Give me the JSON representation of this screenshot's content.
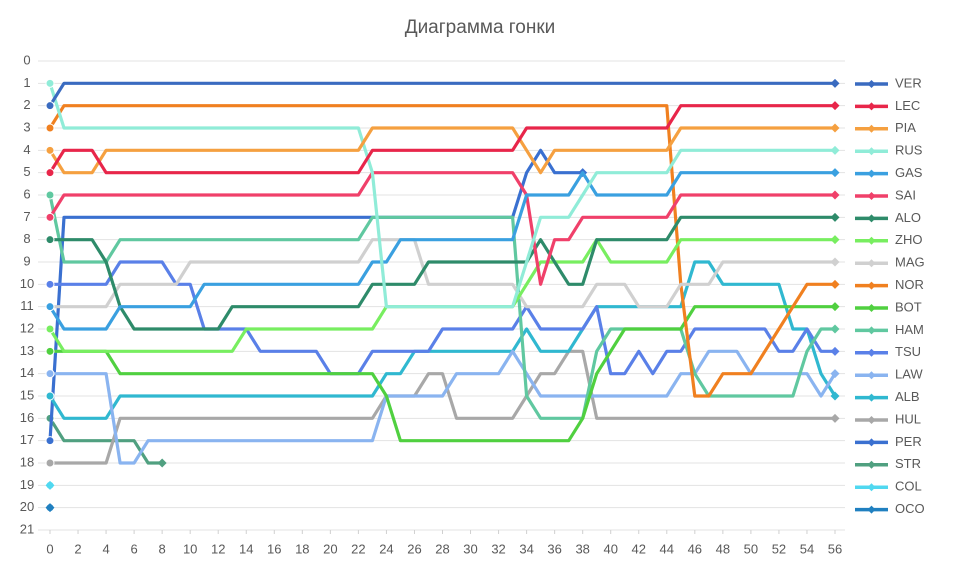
{
  "chart_data": {
    "type": "line",
    "title": "Диаграмма гонки",
    "x": [
      0,
      1,
      2,
      3,
      4,
      5,
      6,
      7,
      8,
      9,
      10,
      11,
      12,
      13,
      14,
      15,
      16,
      17,
      18,
      19,
      20,
      21,
      22,
      23,
      24,
      25,
      26,
      27,
      28,
      29,
      30,
      31,
      32,
      33,
      34,
      35,
      36,
      37,
      38,
      39,
      40,
      41,
      42,
      43,
      44,
      45,
      46,
      47,
      48,
      49,
      50,
      51,
      52,
      53,
      54,
      55,
      56
    ],
    "xlim": [
      0,
      56
    ],
    "xticks": [
      0,
      2,
      4,
      6,
      8,
      10,
      12,
      14,
      16,
      18,
      20,
      22,
      24,
      26,
      28,
      30,
      32,
      34,
      36,
      38,
      40,
      42,
      44,
      46,
      48,
      50,
      52,
      54,
      56
    ],
    "ylim": [
      0,
      21
    ],
    "yticks": [
      0,
      1,
      2,
      3,
      4,
      5,
      6,
      7,
      8,
      9,
      10,
      11,
      12,
      13,
      14,
      15,
      16,
      17,
      18,
      19,
      20,
      21
    ],
    "y_inverted": true,
    "grid": true,
    "legend": "right",
    "series": [
      {
        "name": "VER",
        "color": "#3a6bc0",
        "values": [
          2,
          1,
          1,
          1,
          1,
          1,
          1,
          1,
          1,
          1,
          1,
          1,
          1,
          1,
          1,
          1,
          1,
          1,
          1,
          1,
          1,
          1,
          1,
          1,
          1,
          1,
          1,
          1,
          1,
          1,
          1,
          1,
          1,
          1,
          1,
          1,
          1,
          1,
          1,
          1,
          1,
          1,
          1,
          1,
          1,
          1,
          1,
          1,
          1,
          1,
          1,
          1,
          1,
          1,
          1,
          1,
          1
        ]
      },
      {
        "name": "LEC",
        "color": "#e8264a",
        "values": [
          5,
          4,
          4,
          4,
          5,
          5,
          5,
          5,
          5,
          5,
          5,
          5,
          5,
          5,
          5,
          5,
          5,
          5,
          5,
          5,
          5,
          5,
          5,
          4,
          4,
          4,
          4,
          4,
          4,
          4,
          4,
          4,
          4,
          4,
          3,
          3,
          3,
          3,
          3,
          3,
          3,
          3,
          3,
          3,
          3,
          2,
          2,
          2,
          2,
          2,
          2,
          2,
          2,
          2,
          2,
          2,
          2
        ]
      },
      {
        "name": "PIA",
        "color": "#f5a040",
        "values": [
          4,
          5,
          5,
          5,
          4,
          4,
          4,
          4,
          4,
          4,
          4,
          4,
          4,
          4,
          4,
          4,
          4,
          4,
          4,
          4,
          4,
          4,
          4,
          3,
          3,
          3,
          3,
          3,
          3,
          3,
          3,
          3,
          3,
          3,
          4,
          5,
          4,
          4,
          4,
          4,
          4,
          4,
          4,
          4,
          4,
          3,
          3,
          3,
          3,
          3,
          3,
          3,
          3,
          3,
          3,
          3,
          3
        ]
      },
      {
        "name": "RUS",
        "color": "#90ecd8",
        "values": [
          1,
          3,
          3,
          3,
          3,
          3,
          3,
          3,
          3,
          3,
          3,
          3,
          3,
          3,
          3,
          3,
          3,
          3,
          3,
          3,
          3,
          3,
          3,
          5,
          11,
          11,
          11,
          11,
          11,
          11,
          11,
          11,
          11,
          11,
          9,
          7,
          7,
          7,
          6,
          5,
          5,
          5,
          5,
          5,
          5,
          4,
          4,
          4,
          4,
          4,
          4,
          4,
          4,
          4,
          4,
          4,
          4
        ]
      },
      {
        "name": "GAS",
        "color": "#3aa0e0",
        "values": [
          11,
          12,
          12,
          12,
          12,
          11,
          11,
          11,
          11,
          11,
          11,
          10,
          10,
          10,
          10,
          10,
          10,
          10,
          10,
          10,
          10,
          10,
          10,
          9,
          9,
          8,
          8,
          8,
          8,
          8,
          8,
          8,
          8,
          8,
          6,
          6,
          6,
          6,
          5,
          6,
          6,
          6,
          6,
          6,
          6,
          5,
          5,
          5,
          5,
          5,
          5,
          5,
          5,
          5,
          5,
          5,
          5
        ]
      },
      {
        "name": "SAI",
        "color": "#f0406a",
        "values": [
          7,
          6,
          6,
          6,
          6,
          6,
          6,
          6,
          6,
          6,
          6,
          6,
          6,
          6,
          6,
          6,
          6,
          6,
          6,
          6,
          6,
          6,
          6,
          5,
          5,
          5,
          5,
          5,
          5,
          5,
          5,
          5,
          5,
          5,
          6,
          10,
          8,
          8,
          7,
          7,
          7,
          7,
          7,
          7,
          7,
          6,
          6,
          6,
          6,
          6,
          6,
          6,
          6,
          6,
          6,
          6,
          6
        ]
      },
      {
        "name": "ALO",
        "color": "#2e8b6a",
        "values": [
          8,
          8,
          8,
          8,
          9,
          11,
          12,
          12,
          12,
          12,
          12,
          12,
          12,
          11,
          11,
          11,
          11,
          11,
          11,
          11,
          11,
          11,
          11,
          10,
          10,
          10,
          10,
          9,
          9,
          9,
          9,
          9,
          9,
          9,
          9,
          8,
          9,
          10,
          10,
          8,
          8,
          8,
          8,
          8,
          8,
          7,
          7,
          7,
          7,
          7,
          7,
          7,
          7,
          7,
          7,
          7,
          7
        ]
      },
      {
        "name": "ZHO",
        "color": "#78ee60",
        "values": [
          12,
          13,
          13,
          13,
          13,
          13,
          13,
          13,
          13,
          13,
          13,
          13,
          13,
          13,
          12,
          12,
          12,
          12,
          12,
          12,
          12,
          12,
          12,
          12,
          11,
          11,
          11,
          11,
          11,
          11,
          11,
          11,
          11,
          11,
          10,
          9,
          9,
          9,
          9,
          8,
          9,
          9,
          9,
          9,
          9,
          8,
          8,
          8,
          8,
          8,
          8,
          8,
          8,
          8,
          8,
          8,
          8
        ]
      },
      {
        "name": "MAG",
        "color": "#d0d0d0",
        "values": [
          11,
          11,
          11,
          11,
          11,
          10,
          10,
          10,
          10,
          10,
          9,
          9,
          9,
          9,
          9,
          9,
          9,
          9,
          9,
          9,
          9,
          9,
          9,
          8,
          8,
          8,
          8,
          10,
          10,
          10,
          10,
          10,
          10,
          10,
          11,
          11,
          11,
          11,
          11,
          10,
          10,
          10,
          11,
          11,
          11,
          10,
          10,
          10,
          9,
          9,
          9,
          9,
          9,
          9,
          9,
          9,
          9
        ]
      },
      {
        "name": "NOR",
        "color": "#f08020",
        "values": [
          3,
          2,
          2,
          2,
          2,
          2,
          2,
          2,
          2,
          2,
          2,
          2,
          2,
          2,
          2,
          2,
          2,
          2,
          2,
          2,
          2,
          2,
          2,
          2,
          2,
          2,
          2,
          2,
          2,
          2,
          2,
          2,
          2,
          2,
          2,
          2,
          2,
          2,
          2,
          2,
          2,
          2,
          2,
          2,
          2,
          10,
          15,
          15,
          14,
          14,
          14,
          13,
          12,
          11,
          10,
          10,
          10
        ]
      },
      {
        "name": "BOT",
        "color": "#50d040",
        "values": [
          13,
          13,
          13,
          13,
          13,
          14,
          14,
          14,
          14,
          14,
          14,
          14,
          14,
          14,
          14,
          14,
          14,
          14,
          14,
          14,
          14,
          14,
          14,
          14,
          15,
          17,
          17,
          17,
          17,
          17,
          17,
          17,
          17,
          17,
          17,
          17,
          17,
          17,
          16,
          14,
          13,
          12,
          12,
          12,
          12,
          12,
          11,
          11,
          11,
          11,
          11,
          11,
          11,
          11,
          11,
          11,
          11
        ]
      },
      {
        "name": "HAM",
        "color": "#60c8a0",
        "values": [
          6,
          9,
          9,
          9,
          9,
          8,
          8,
          8,
          8,
          8,
          8,
          8,
          8,
          8,
          8,
          8,
          8,
          8,
          8,
          8,
          8,
          8,
          8,
          7,
          7,
          7,
          7,
          7,
          7,
          7,
          7,
          7,
          7,
          7,
          15,
          16,
          16,
          16,
          16,
          13,
          12,
          12,
          12,
          12,
          12,
          12,
          14,
          15,
          15,
          15,
          15,
          15,
          15,
          15,
          13,
          12,
          12
        ]
      },
      {
        "name": "TSU",
        "color": "#5a80e8",
        "values": [
          10,
          10,
          10,
          10,
          10,
          9,
          9,
          9,
          9,
          10,
          10,
          12,
          12,
          12,
          12,
          13,
          13,
          13,
          13,
          13,
          14,
          14,
          14,
          13,
          13,
          13,
          13,
          13,
          12,
          12,
          12,
          12,
          12,
          12,
          11,
          12,
          12,
          12,
          12,
          11,
          14,
          14,
          13,
          14,
          13,
          13,
          12,
          12,
          12,
          12,
          12,
          12,
          13,
          13,
          12,
          13,
          13
        ]
      },
      {
        "name": "LAW",
        "color": "#8ab4f0",
        "values": [
          14,
          14,
          14,
          14,
          14,
          18,
          18,
          17,
          17,
          17,
          17,
          17,
          17,
          17,
          17,
          17,
          17,
          17,
          17,
          17,
          17,
          17,
          17,
          17,
          15,
          15,
          15,
          15,
          15,
          14,
          14,
          14,
          14,
          13,
          14,
          15,
          15,
          15,
          15,
          15,
          15,
          15,
          15,
          15,
          15,
          14,
          14,
          13,
          13,
          13,
          14,
          14,
          14,
          14,
          14,
          15,
          14
        ]
      },
      {
        "name": "ALB",
        "color": "#30b8d0",
        "values": [
          15,
          16,
          16,
          16,
          16,
          15,
          15,
          15,
          15,
          15,
          15,
          15,
          15,
          15,
          15,
          15,
          15,
          15,
          15,
          15,
          15,
          15,
          15,
          15,
          14,
          14,
          13,
          13,
          13,
          13,
          13,
          13,
          13,
          13,
          12,
          13,
          13,
          13,
          12,
          11,
          11,
          11,
          11,
          11,
          11,
          11,
          9,
          9,
          10,
          10,
          10,
          10,
          10,
          12,
          12,
          14,
          15
        ]
      },
      {
        "name": "HUL",
        "color": "#a8a8a8",
        "values": [
          18,
          18,
          18,
          18,
          18,
          16,
          16,
          16,
          16,
          16,
          16,
          16,
          16,
          16,
          16,
          16,
          16,
          16,
          16,
          16,
          16,
          16,
          16,
          16,
          15,
          15,
          15,
          14,
          14,
          16,
          16,
          16,
          16,
          16,
          15,
          14,
          14,
          13,
          13,
          16,
          16,
          16,
          16,
          16,
          16,
          16,
          16,
          16,
          16,
          16,
          16,
          16,
          16,
          16,
          16,
          16,
          16
        ]
      },
      {
        "name": "PER",
        "color": "#3a70d0",
        "values": [
          17,
          7,
          7,
          7,
          7,
          7,
          7,
          7,
          7,
          7,
          7,
          7,
          7,
          7,
          7,
          7,
          7,
          7,
          7,
          7,
          7,
          7,
          7,
          7,
          7,
          7,
          7,
          7,
          7,
          7,
          7,
          7,
          7,
          7,
          5,
          4,
          5,
          5,
          5,
          null,
          null,
          null,
          null,
          null,
          null,
          null,
          null,
          null,
          null,
          null,
          null,
          null,
          null,
          null,
          null,
          null,
          null
        ]
      },
      {
        "name": "STR",
        "color": "#50a080",
        "values": [
          16,
          17,
          17,
          17,
          17,
          17,
          17,
          18,
          18,
          null,
          null,
          null,
          null,
          null,
          null,
          null,
          null,
          null,
          null,
          null,
          null,
          null,
          null,
          null,
          null,
          null,
          null,
          null,
          null,
          null,
          null,
          null,
          null,
          null,
          null,
          null,
          null,
          null,
          null,
          null,
          null,
          null,
          null,
          null,
          null,
          null,
          null,
          null,
          null,
          null,
          null,
          null,
          null,
          null,
          null,
          null,
          null
        ]
      },
      {
        "name": "COL",
        "color": "#50d8f0",
        "values": [
          19,
          null,
          null,
          null,
          null,
          null,
          null,
          null,
          null,
          null,
          null,
          null,
          null,
          null,
          null,
          null,
          null,
          null,
          null,
          null,
          null,
          null,
          null,
          null,
          null,
          null,
          null,
          null,
          null,
          null,
          null,
          null,
          null,
          null,
          null,
          null,
          null,
          null,
          null,
          null,
          null,
          null,
          null,
          null,
          null,
          null,
          null,
          null,
          null,
          null,
          null,
          null,
          null,
          null,
          null,
          null,
          null
        ]
      },
      {
        "name": "OCO",
        "color": "#2080c0",
        "values": [
          20,
          null,
          null,
          null,
          null,
          null,
          null,
          null,
          null,
          null,
          null,
          null,
          null,
          null,
          null,
          null,
          null,
          null,
          null,
          null,
          null,
          null,
          null,
          null,
          null,
          null,
          null,
          null,
          null,
          null,
          null,
          null,
          null,
          null,
          null,
          null,
          null,
          null,
          null,
          null,
          null,
          null,
          null,
          null,
          null,
          null,
          null,
          null,
          null,
          null,
          null,
          null,
          null,
          null,
          null,
          null,
          null
        ]
      }
    ]
  }
}
